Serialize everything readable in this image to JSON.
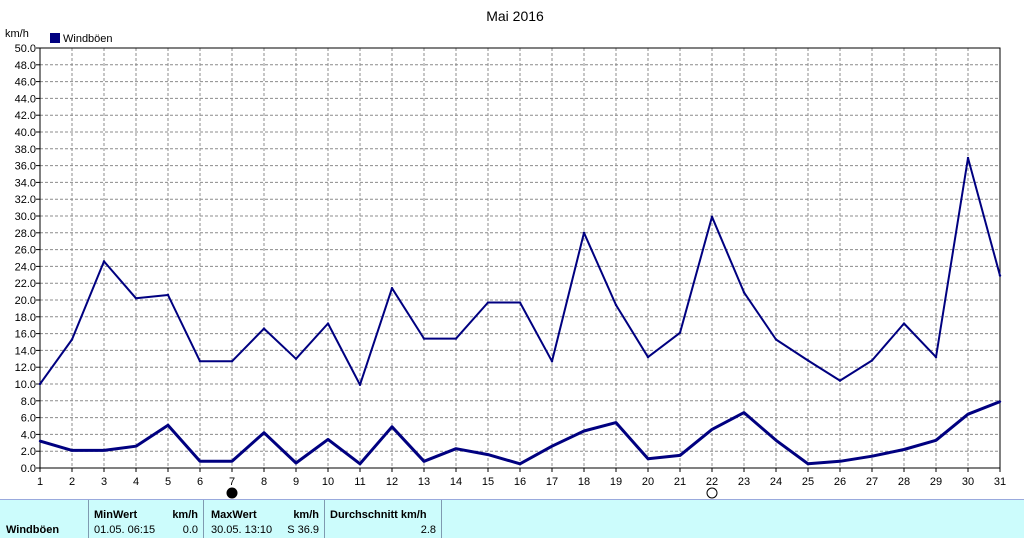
{
  "chart_data": {
    "type": "line",
    "title": "Mai 2016",
    "ylabel": "km/h",
    "xlabel": "",
    "ylim": [
      0,
      50
    ],
    "ytick_step": 2,
    "grid": true,
    "legend": {
      "position": "top-left",
      "entries": [
        "Windböen"
      ]
    },
    "categories": [
      "1",
      "2",
      "3",
      "4",
      "5",
      "6",
      "7",
      "8",
      "9",
      "10",
      "11",
      "12",
      "13",
      "14",
      "15",
      "16",
      "17",
      "18",
      "19",
      "20",
      "21",
      "22",
      "23",
      "24",
      "25",
      "26",
      "27",
      "28",
      "29",
      "30",
      "31"
    ],
    "series": [
      {
        "name": "Windböen",
        "color": "#000080",
        "values": [
          10.0,
          15.3,
          24.6,
          20.2,
          20.6,
          12.7,
          12.7,
          16.6,
          13.0,
          17.2,
          9.9,
          21.4,
          15.4,
          15.4,
          19.7,
          19.7,
          12.7,
          28.0,
          19.4,
          13.2,
          16.1,
          29.9,
          20.9,
          15.3,
          12.8,
          10.4,
          12.8,
          17.2,
          13.2,
          36.9,
          22.9
        ]
      },
      {
        "name": "",
        "color": "#000080",
        "values": [
          3.2,
          2.1,
          2.1,
          2.6,
          5.1,
          0.8,
          0.8,
          4.2,
          0.6,
          3.4,
          0.5,
          4.9,
          0.8,
          2.3,
          1.6,
          0.5,
          2.6,
          4.4,
          5.4,
          1.1,
          1.5,
          4.6,
          6.6,
          3.3,
          0.5,
          0.8,
          1.4,
          2.2,
          3.3,
          6.4,
          7.9
        ]
      }
    ],
    "markers": [
      {
        "x": "7",
        "symbol": "new-moon"
      },
      {
        "x": "22",
        "symbol": "full-moon"
      }
    ]
  },
  "stats_table": {
    "row_label": "Windböen",
    "min_header": "MinWert",
    "min_unit": "km/h",
    "min_time": "01.05.  06:15",
    "min_value": "0.0",
    "max_header": "MaxWert",
    "max_unit": "km/h",
    "max_time": "30.05.  13:10",
    "max_value": "S 36.9",
    "avg_header": "Durchschnitt km/h",
    "avg_value": "2.8"
  }
}
